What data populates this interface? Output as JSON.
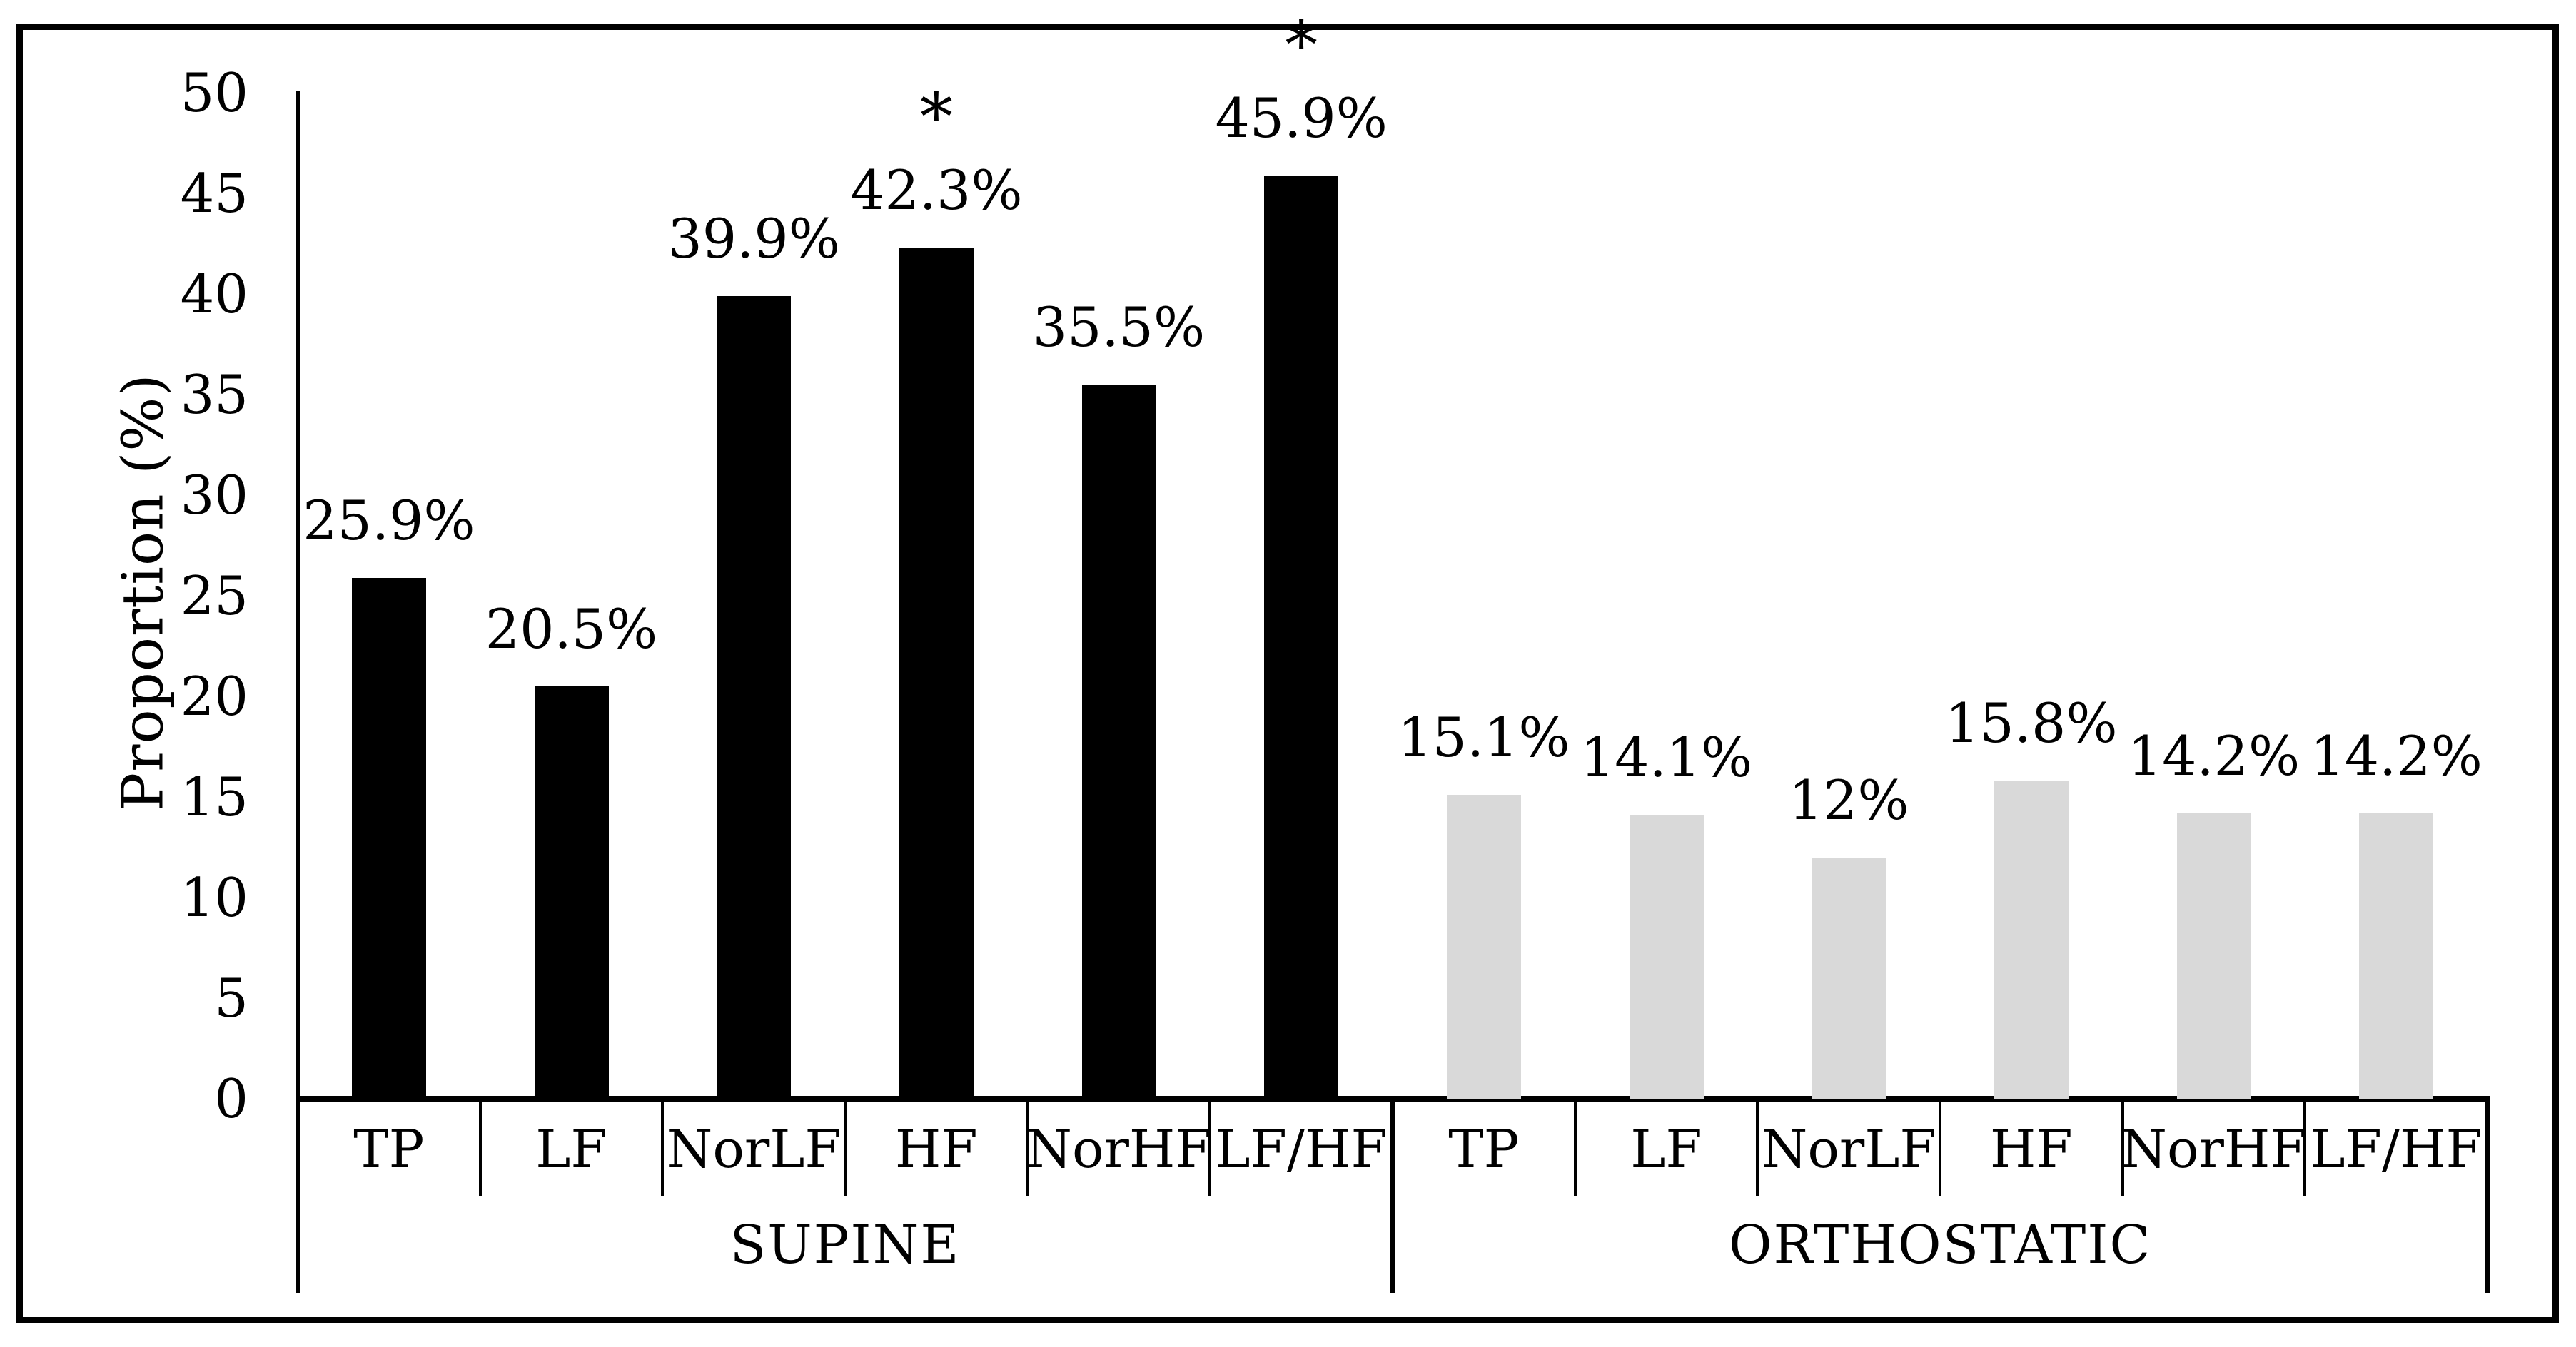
{
  "chart_data": {
    "type": "bar",
    "title": "",
    "ylabel": "Proportion (%)",
    "xlabel": "",
    "ylim": [
      0,
      50
    ],
    "yticks": [
      0,
      5,
      10,
      15,
      20,
      25,
      30,
      35,
      40,
      45,
      50
    ],
    "grid": false,
    "legend": null,
    "significance_marker": "*",
    "colors": {
      "supine_bar": "#000000",
      "orthostatic_bar": "#d9d9d9",
      "axis": "#000000",
      "text": "#000000",
      "frame": "#000000",
      "background": "#ffffff"
    },
    "groups": [
      {
        "label": "SUPINE",
        "bar_color": "#000000",
        "categories": [
          "TP",
          "LF",
          "NorLF",
          "HF",
          "NorHF",
          "LF/HF"
        ],
        "values": [
          25.9,
          20.5,
          39.9,
          42.3,
          35.5,
          45.9
        ],
        "value_labels": [
          "25.9%",
          "20.5%",
          "39.9%",
          "42.3%",
          "35.5%",
          "45.9%"
        ],
        "significance": [
          false,
          false,
          false,
          true,
          false,
          true
        ]
      },
      {
        "label": "ORTHOSTATIC",
        "bar_color": "#d9d9d9",
        "categories": [
          "TP",
          "LF",
          "NorLF",
          "HF",
          "NorHF",
          "LF/HF"
        ],
        "values": [
          15.1,
          14.1,
          12,
          15.8,
          14.2,
          14.2
        ],
        "value_labels": [
          "15.1%",
          "14.1%",
          "12%",
          "15.8%",
          "14.2%",
          "14.2%"
        ],
        "significance": [
          false,
          false,
          false,
          false,
          false,
          false
        ]
      }
    ]
  }
}
